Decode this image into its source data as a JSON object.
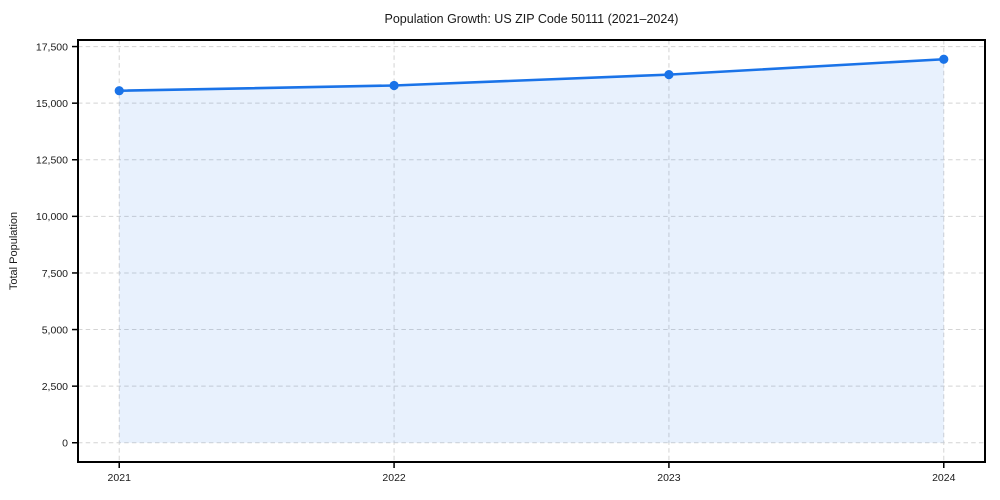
{
  "chart_data": {
    "type": "line",
    "title": "Population Growth: US ZIP Code 50111 (2021–2024)",
    "xlabel": "",
    "ylabel": "Total Population",
    "x": [
      2021,
      2022,
      2023,
      2024
    ],
    "series": [
      {
        "name": "Total Population",
        "values": [
          15550,
          15780,
          16260,
          16940
        ]
      }
    ],
    "xticks": [
      2021,
      2022,
      2023,
      2024
    ],
    "xtick_labels": [
      "2021",
      "2022",
      "2023",
      "2024"
    ],
    "yticks": [
      0,
      2500,
      5000,
      7500,
      10000,
      12500,
      15000,
      17500
    ],
    "ytick_labels": [
      "0",
      "2,500",
      "5,000",
      "7,500",
      "10,000",
      "12,500",
      "15,000",
      "17,500"
    ],
    "xlim": [
      2020.85,
      2024.15
    ],
    "ylim": [
      -850,
      17790
    ],
    "grid": true,
    "grid_style": "dashed",
    "area_fill": true,
    "area_baseline": 0,
    "legend": false,
    "marker": "circle",
    "colors": {
      "line": "#1a73e8",
      "marker": "#1a73e8",
      "area": "#1a73e8",
      "area_opacity": 0.1,
      "grid": "#d4d4d4",
      "spine": "#000000",
      "tick": "#000000",
      "text": "#1a1a1a",
      "background": "#ffffff"
    }
  }
}
